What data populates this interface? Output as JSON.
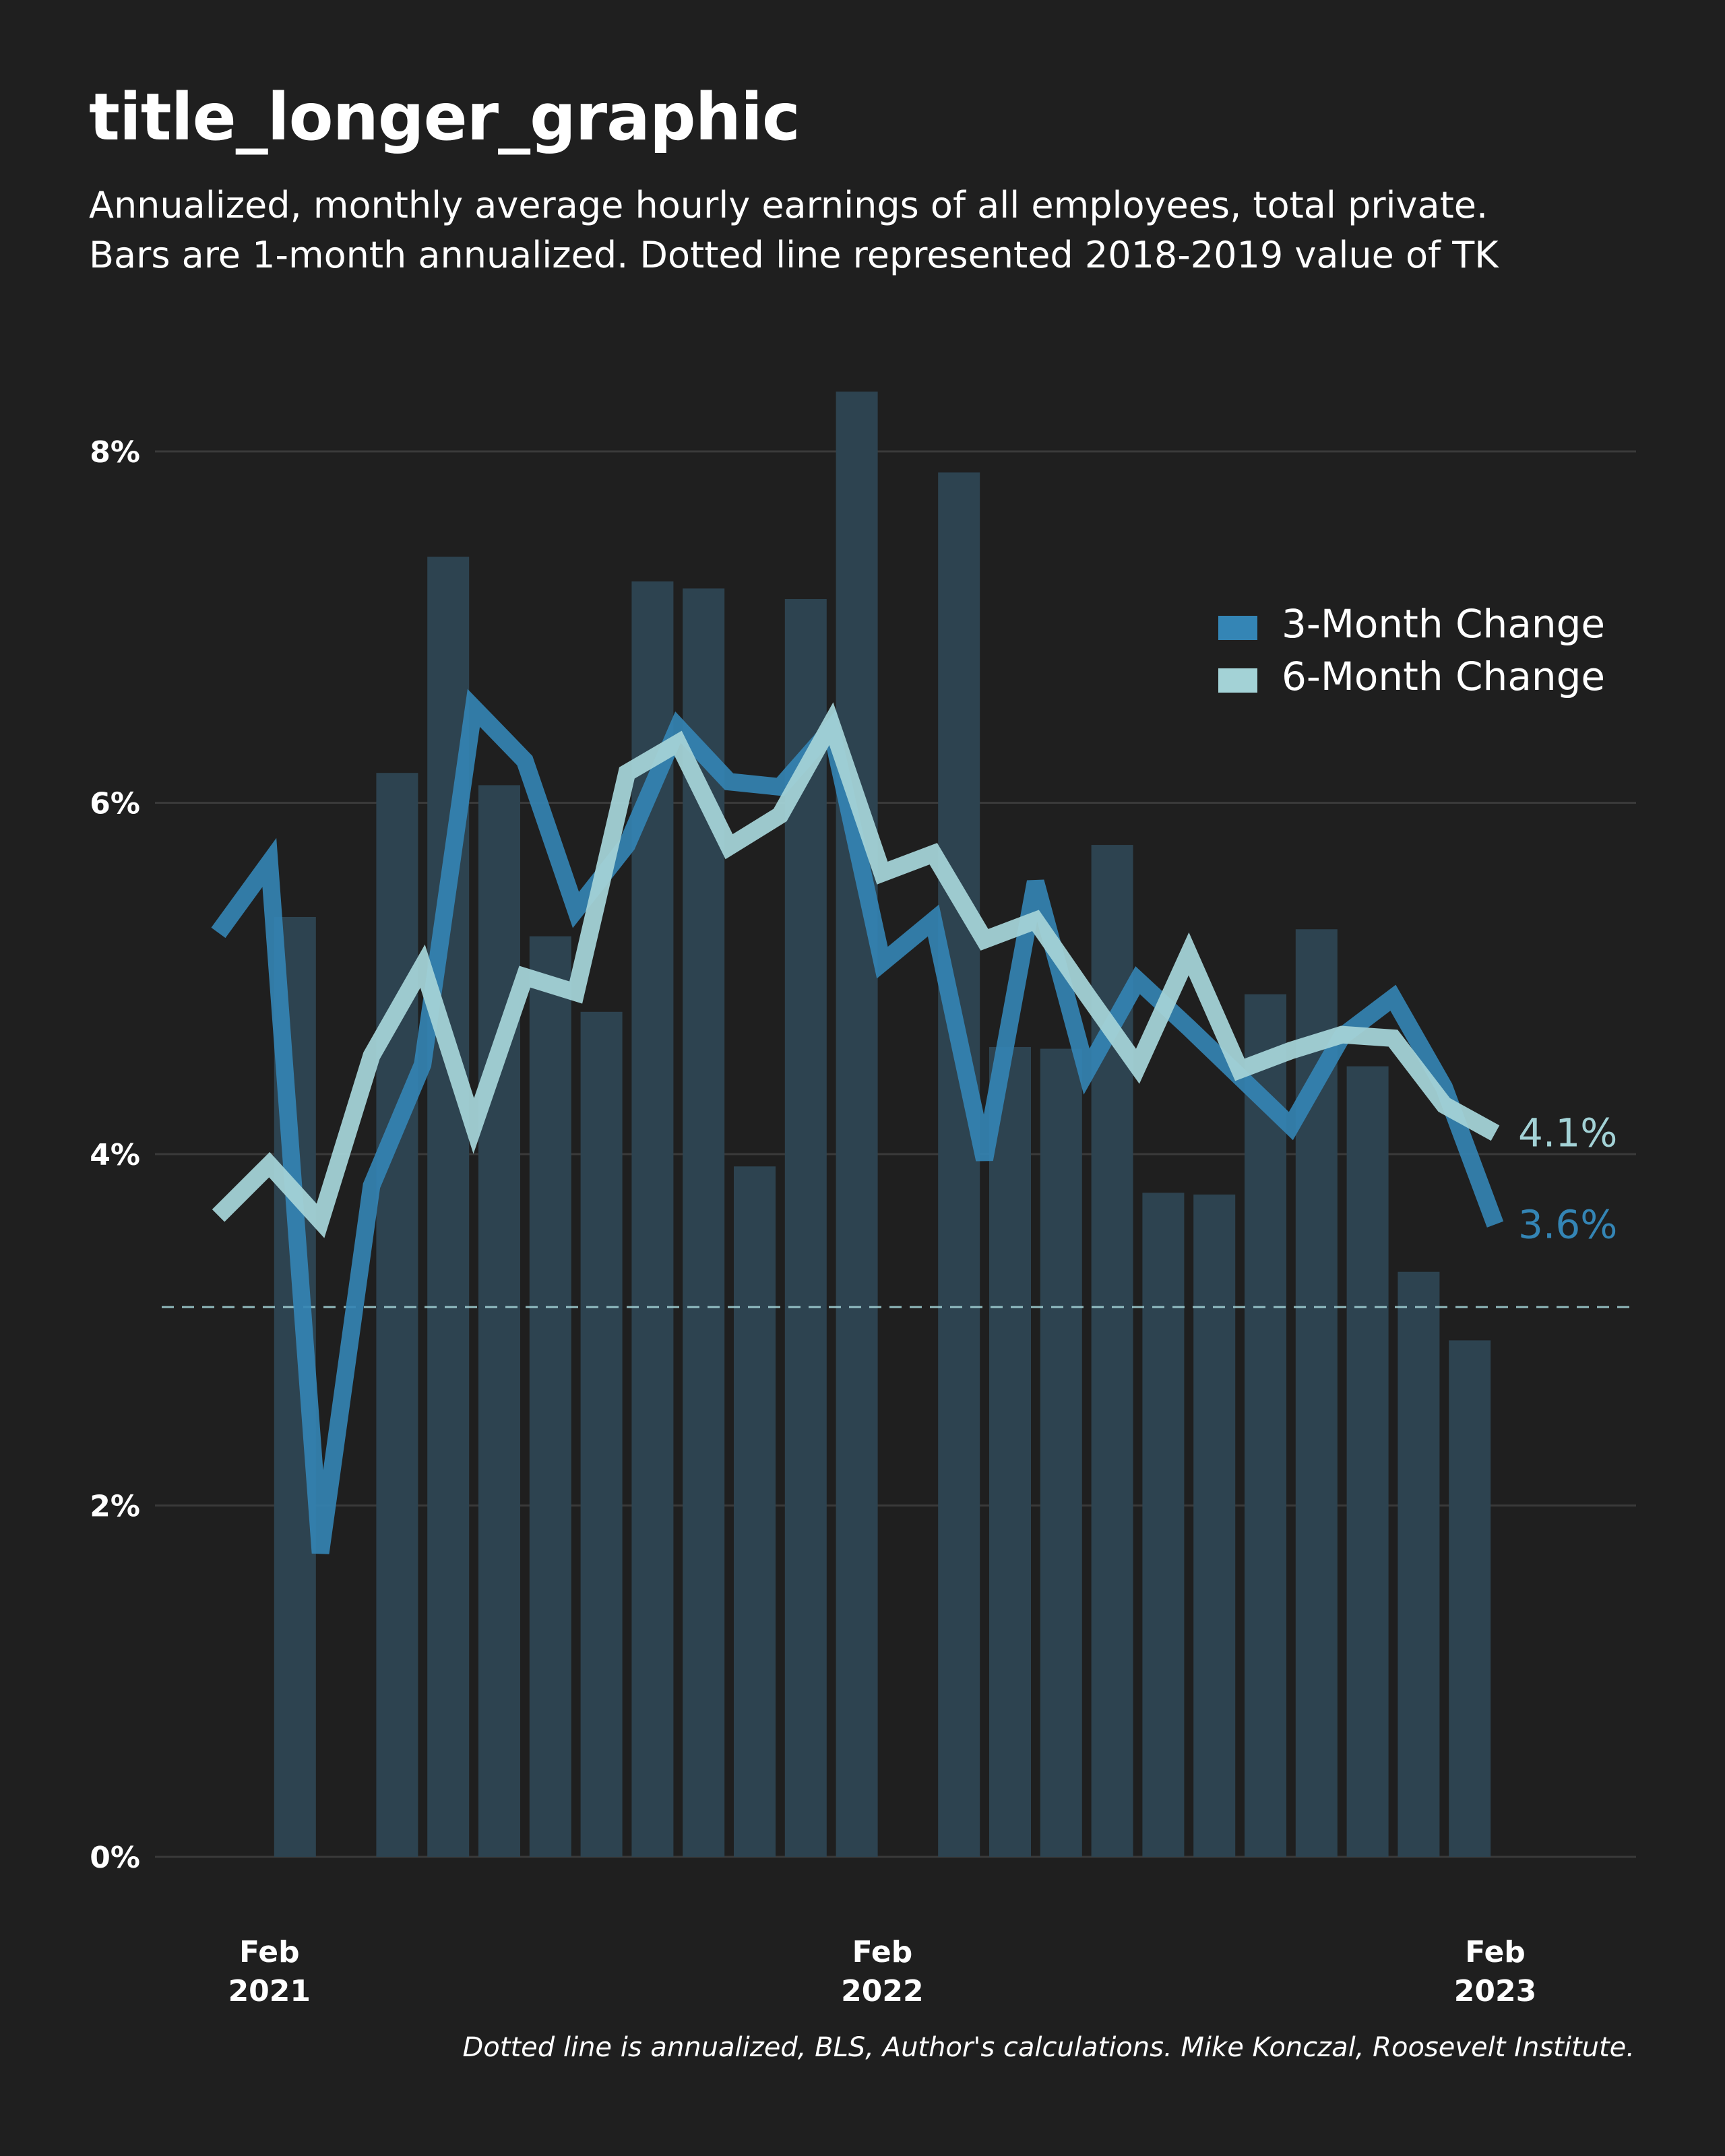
{
  "header": {
    "title": "title_longer_graphic",
    "subtitle_line1": "Annualized, monthly average hourly earnings of all employees, total private.",
    "subtitle_line2": "Bars are 1-month annualized. Dotted line represented 2018-2019 value of TK"
  },
  "footer": {
    "caption": "Dotted line is annualized, BLS, Author's calculations. Mike Konczal, Roosevelt Institute."
  },
  "colors": {
    "background": "#1f1f1f",
    "bars": "#2d4350",
    "three_month": "#3485b5",
    "six_month": "#a3d2d6",
    "grid": "#3a3a3a",
    "reference_line": "#a3d2d6"
  },
  "chart_data": {
    "type": "bar",
    "x": [
      "2021-01",
      "2021-02",
      "2021-03",
      "2021-04",
      "2021-05",
      "2021-06",
      "2021-07",
      "2021-08",
      "2021-09",
      "2021-10",
      "2021-11",
      "2021-12",
      "2022-01",
      "2022-02",
      "2022-03",
      "2022-04",
      "2022-05",
      "2022-06",
      "2022-07",
      "2022-08",
      "2022-09",
      "2022-10",
      "2022-11",
      "2022-12",
      "2023-01",
      "2023-02"
    ],
    "x_ticks": [
      {
        "x": "2021-02",
        "label_line1": "Feb",
        "label_line2": "2021"
      },
      {
        "x": "2022-02",
        "label_line1": "Feb",
        "label_line2": "2022"
      },
      {
        "x": "2023-02",
        "label_line1": "Feb",
        "label_line2": "2023"
      }
    ],
    "y_ticks": [
      0,
      2,
      4,
      6,
      8
    ],
    "y_tick_labels": [
      "0%",
      "2%",
      "4%",
      "6%",
      "8%"
    ],
    "ylim": [
      0,
      8.4
    ],
    "grid": true,
    "bars": {
      "name": "1-Month Change",
      "values": [
        null,
        5.35,
        null,
        6.17,
        7.4,
        6.1,
        5.24,
        4.81,
        7.26,
        7.22,
        3.93,
        7.16,
        8.34,
        null,
        7.88,
        4.61,
        4.6,
        5.76,
        3.78,
        3.77,
        4.91,
        5.28,
        4.5,
        3.33,
        2.94,
        null
      ]
    },
    "series": [
      {
        "name": "3-Month Change",
        "type": "line",
        "values": [
          5.26,
          5.66,
          1.73,
          3.82,
          4.51,
          6.54,
          6.24,
          5.39,
          5.76,
          6.43,
          6.12,
          6.09,
          6.42,
          5.09,
          5.33,
          3.97,
          5.55,
          4.47,
          4.99,
          4.72,
          4.44,
          4.16,
          4.67,
          4.89,
          4.38,
          3.6
        ]
      },
      {
        "name": "6-Month Change",
        "type": "line",
        "values": [
          3.65,
          3.94,
          3.62,
          4.56,
          5.07,
          4.16,
          5.01,
          4.92,
          6.17,
          6.34,
          5.75,
          5.93,
          6.45,
          5.6,
          5.71,
          5.22,
          5.33,
          4.91,
          4.5,
          5.14,
          4.48,
          4.59,
          4.68,
          4.66,
          4.28,
          4.12
        ]
      }
    ],
    "reference_line": {
      "y": 3.13,
      "style": "dashed"
    },
    "end_labels": [
      {
        "series": "6-Month Change",
        "text": "4.1%"
      },
      {
        "series": "3-Month Change",
        "text": "3.6%"
      }
    ],
    "legend": {
      "position": "top-right",
      "entries": [
        "3-Month Change",
        "6-Month Change"
      ]
    }
  }
}
